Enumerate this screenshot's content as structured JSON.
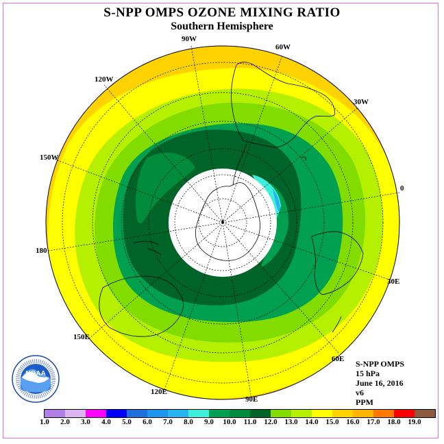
{
  "title": "S-NPP OMPS OZONE MIXING RATIO",
  "subtitle": "Southern Hemisphere",
  "longitude_labels": [
    {
      "text": "90W",
      "name": "lon-label-90w"
    },
    {
      "text": "60W",
      "name": "lon-label-60w"
    },
    {
      "text": "120W",
      "name": "lon-label-120w"
    },
    {
      "text": "30W",
      "name": "lon-label-30w"
    },
    {
      "text": "150W",
      "name": "lon-label-150w"
    },
    {
      "text": "0",
      "name": "lon-label-0"
    },
    {
      "text": "180",
      "name": "lon-label-180"
    },
    {
      "text": "30E",
      "name": "lon-label-30e"
    },
    {
      "text": "150E",
      "name": "lon-label-150e"
    },
    {
      "text": "60E",
      "name": "lon-label-60e"
    },
    {
      "text": "120E",
      "name": "lon-label-120e"
    },
    {
      "text": "90E",
      "name": "lon-label-90e"
    }
  ],
  "info": {
    "instrument": "S-NPP OMPS",
    "level": "15 hPa",
    "date": "June 16, 2016",
    "version": "v6",
    "units": "PPM"
  },
  "logo": {
    "text": "NOAA",
    "icon": "noaa-logo"
  },
  "colorbar": {
    "ticks": [
      "1.0",
      "2.0",
      "3.0",
      "4.0",
      "5.0",
      "6.0",
      "7.0",
      "8.0",
      "9.0",
      "10.0",
      "11.0",
      "12.0",
      "13.0",
      "14.0",
      "15.0",
      "16.0",
      "17.0",
      "18.0",
      "19.0"
    ],
    "colors": [
      "#b27ee8",
      "#dcb4f0",
      "#ff00ff",
      "#0000ff",
      "#1e6edc",
      "#1e96f0",
      "#28b4f0",
      "#3cf0dc",
      "#00a050",
      "#008c3c",
      "#006428",
      "#82dc00",
      "#b4f000",
      "#ffff00",
      "#ffd200",
      "#ffb400",
      "#ff7800",
      "#ff0000",
      "#8c5a3c"
    ]
  }
}
